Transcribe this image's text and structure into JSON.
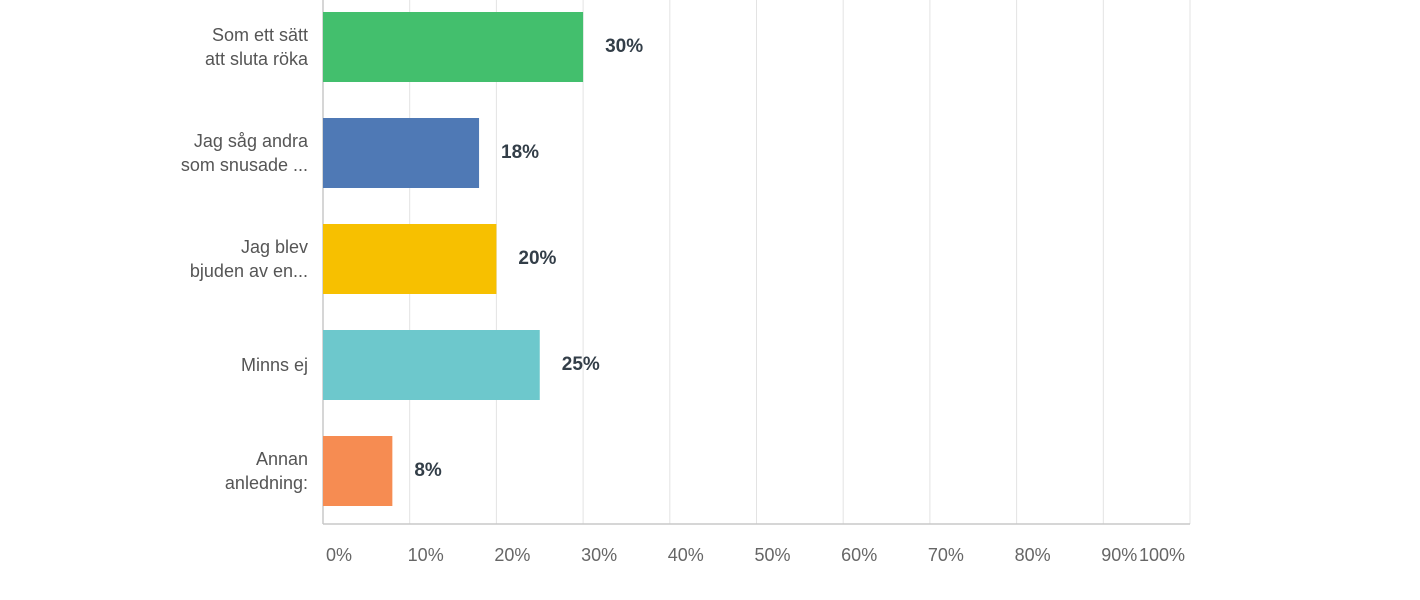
{
  "chart_data": {
    "type": "hbar",
    "categories": [
      "Som ett sätt\natt sluta röka",
      "Jag såg andra\nsom snusade ...",
      "Jag blev\nbjuden av en...",
      "Minns ej",
      "Annan\nanledning:"
    ],
    "values": [
      30,
      18,
      20,
      25,
      8
    ],
    "value_labels": [
      "30%",
      "18%",
      "20%",
      "25%",
      "8%"
    ],
    "colors": [
      "#43bf6d",
      "#4f79b5",
      "#f7c000",
      "#6dc8cc",
      "#f68c52"
    ],
    "xlim": [
      0,
      100
    ],
    "xticks": [
      {
        "value": 0,
        "label": "0%"
      },
      {
        "value": 10,
        "label": "10%"
      },
      {
        "value": 20,
        "label": "20%"
      },
      {
        "value": 30,
        "label": "30%"
      },
      {
        "value": 40,
        "label": "40%"
      },
      {
        "value": 50,
        "label": "50%"
      },
      {
        "value": 60,
        "label": "60%"
      },
      {
        "value": 70,
        "label": "70%"
      },
      {
        "value": 80,
        "label": "80%"
      },
      {
        "value": 90,
        "label": "90%"
      },
      {
        "value": 100,
        "label": "100%"
      }
    ],
    "grid": true
  }
}
